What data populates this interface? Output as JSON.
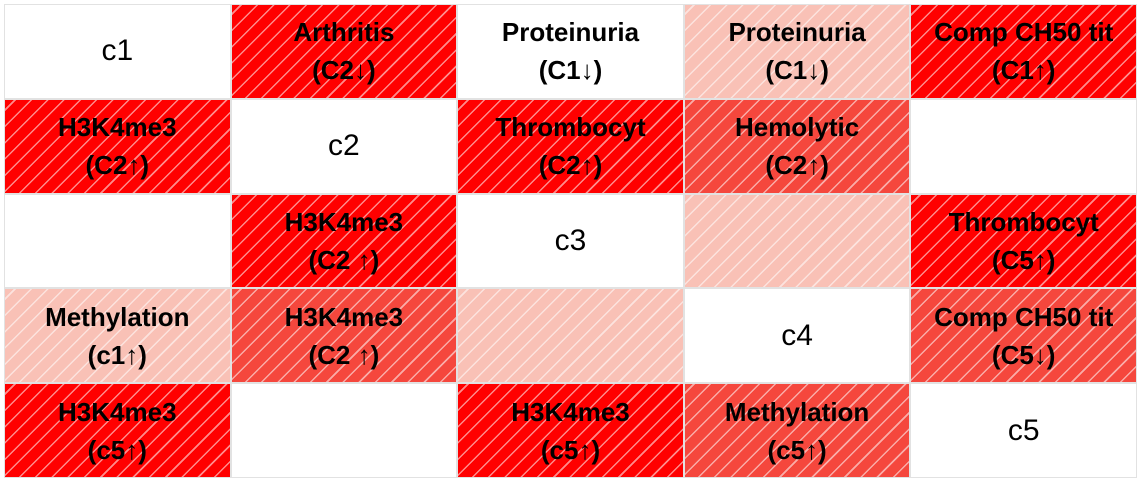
{
  "colors": {
    "dark": "#ff0000",
    "medium": "#f5473d",
    "light": "#f9c1b6",
    "blank": "#ffffff"
  },
  "rows": [
    [
      {
        "lines": [
          "c1"
        ],
        "shade": "blank",
        "diag": true
      },
      {
        "lines": [
          "Arthritis",
          "(C2↓)"
        ],
        "shade": "dark"
      },
      {
        "lines": [
          "Proteinuria",
          "(C1↓)"
        ],
        "shade": "blank"
      },
      {
        "lines": [
          "Proteinuria",
          "(C1↓)"
        ],
        "shade": "light"
      },
      {
        "lines": [
          "Comp CH50 tit",
          "(C1↑)"
        ],
        "shade": "dark"
      }
    ],
    [
      {
        "lines": [
          "H3K4me3",
          "(C2↑)"
        ],
        "shade": "dark"
      },
      {
        "lines": [
          "c2"
        ],
        "shade": "blank",
        "diag": true
      },
      {
        "lines": [
          "Thrombocyt",
          "(C2↑)"
        ],
        "shade": "dark"
      },
      {
        "lines": [
          "Hemolytic",
          "(C2↑)"
        ],
        "shade": "medium"
      },
      {
        "lines": [],
        "shade": "blank"
      }
    ],
    [
      {
        "lines": [],
        "shade": "blank"
      },
      {
        "lines": [
          "H3K4me3",
          "(C2 ↑)"
        ],
        "shade": "dark"
      },
      {
        "lines": [
          "c3"
        ],
        "shade": "blank",
        "diag": true
      },
      {
        "lines": [],
        "shade": "light"
      },
      {
        "lines": [
          "Thrombocyt",
          "(C5↑)"
        ],
        "shade": "dark"
      }
    ],
    [
      {
        "lines": [
          "Methylation",
          "(c1↑)"
        ],
        "shade": "light"
      },
      {
        "lines": [
          "H3K4me3",
          "(C2 ↑)"
        ],
        "shade": "medium"
      },
      {
        "lines": [],
        "shade": "light"
      },
      {
        "lines": [
          "c4"
        ],
        "shade": "blank",
        "diag": true
      },
      {
        "lines": [
          "Comp CH50 tit",
          "(C5↓)"
        ],
        "shade": "medium"
      }
    ],
    [
      {
        "lines": [
          "H3K4me3",
          "(c5↑)"
        ],
        "shade": "dark"
      },
      {
        "lines": [],
        "shade": "blank"
      },
      {
        "lines": [
          "H3K4me3",
          "(c5↑)"
        ],
        "shade": "dark"
      },
      {
        "lines": [
          "Methylation",
          "(c5↑)"
        ],
        "shade": "medium"
      },
      {
        "lines": [
          "c5"
        ],
        "shade": "blank",
        "diag": true
      }
    ]
  ]
}
